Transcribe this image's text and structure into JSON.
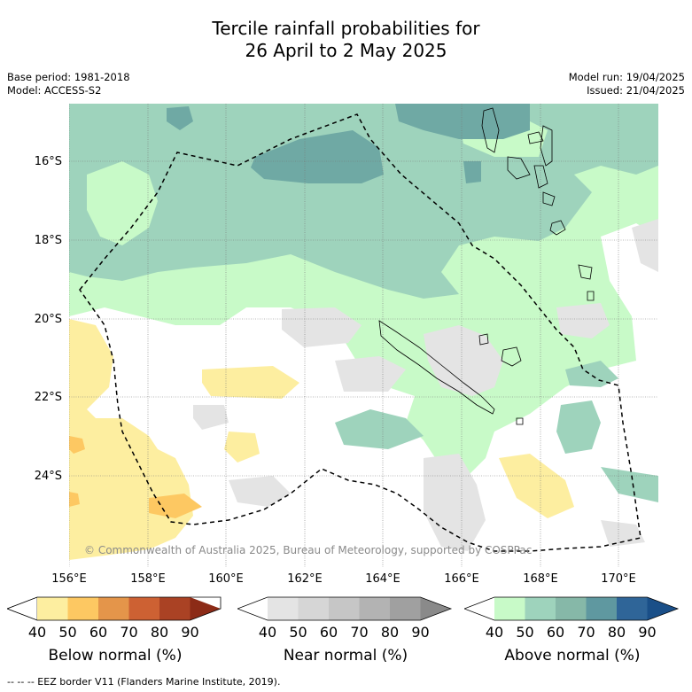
{
  "title_line1": "Tercile rainfall probabilities for",
  "title_line2": "26 April to 2 May 2025",
  "base_period": "Base period: 1981-2018",
  "model": "Model: ACCESS-S2",
  "model_run": "Model run: 19/04/2025",
  "issued": "Issued: 21/04/2025",
  "lat_labels": [
    "16°S",
    "18°S",
    "20°S",
    "22°S",
    "24°S"
  ],
  "lon_labels": [
    "156°E",
    "158°E",
    "160°E",
    "162°E",
    "164°E",
    "166°E",
    "168°E",
    "170°E"
  ],
  "copyright": "© Commonwealth of Australia 2025, Bureau of Meteorology, supported by COSPPac",
  "colorbars": [
    {
      "label": "Below normal (%)",
      "ticks": [
        "40",
        "50",
        "60",
        "70",
        "80",
        "90"
      ],
      "colors": [
        "#ffffff",
        "#fdeea0",
        "#fdc862",
        "#e4954a",
        "#cd6133",
        "#aa4224",
        "#8c2b17"
      ]
    },
    {
      "label": "Near normal (%)",
      "ticks": [
        "40",
        "50",
        "60",
        "70",
        "80",
        "90"
      ],
      "colors": [
        "#ffffff",
        "#e4e4e4",
        "#d6d6d6",
        "#c6c6c6",
        "#b3b3b3",
        "#a0a0a0",
        "#8a8a8a"
      ]
    },
    {
      "label": "Above normal (%)",
      "ticks": [
        "40",
        "50",
        "60",
        "70",
        "80",
        "90"
      ],
      "colors": [
        "#ffffff",
        "#c8fac8",
        "#9ed3bc",
        "#86b8a8",
        "#5f98a0",
        "#2f6598",
        "#1a4f88"
      ]
    }
  ],
  "footer": "--  --  -- EEZ border V11 (Flanders Marine Institute, 2019)."
}
